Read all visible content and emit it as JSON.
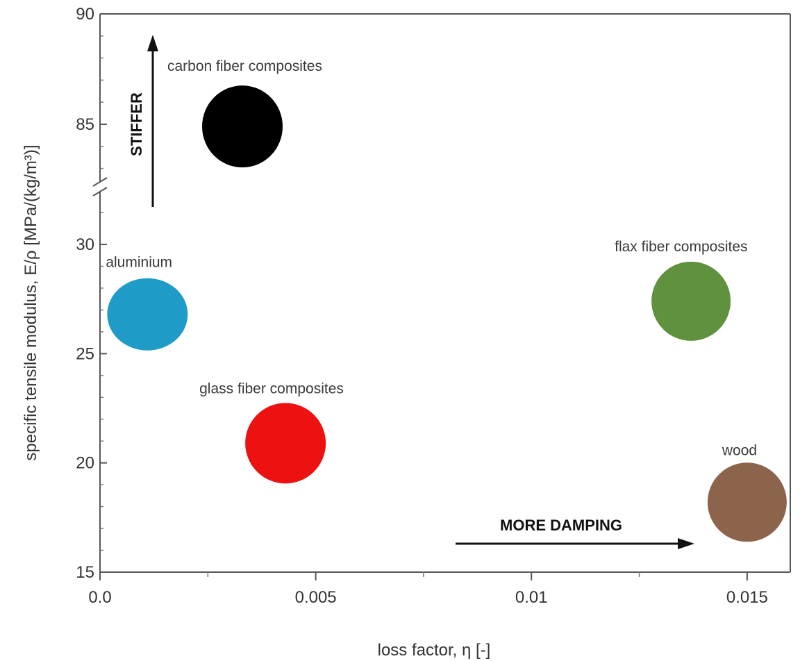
{
  "chart_data": {
    "type": "scatter",
    "xlabel": "loss factor, η [-]",
    "ylabel": "specific tensile modulus, E/ρ [MPa/(kg/m³)]",
    "xlim": [
      0,
      0.016
    ],
    "ylim": [
      15,
      90
    ],
    "y_axis_break": [
      30,
      80
    ],
    "x_ticks": [
      {
        "value": 0,
        "label": "0.0"
      },
      {
        "value": 0.005,
        "label": "0.005"
      },
      {
        "value": 0.01,
        "label": "0.01"
      },
      {
        "value": 0.015,
        "label": "0.015"
      }
    ],
    "y_ticks": [
      {
        "value": 15,
        "label": "15"
      },
      {
        "value": 20,
        "label": "20"
      },
      {
        "value": 25,
        "label": "25"
      },
      {
        "value": 30,
        "label": "30"
      },
      {
        "value": 85,
        "label": "85"
      },
      {
        "value": 90,
        "label": "90"
      }
    ],
    "grid": false,
    "points": [
      {
        "label": "carbon fiber composites",
        "x": 0.0033,
        "y": 84.9,
        "color": "#000000"
      },
      {
        "label": "aluminium",
        "x": 0.0011,
        "y": 26.8,
        "color": "#1f9bc8"
      },
      {
        "label": "glass fiber composites",
        "x": 0.0043,
        "y": 20.9,
        "color": "#ee1111"
      },
      {
        "label": "flax fiber composites",
        "x": 0.0137,
        "y": 27.4,
        "color": "#5f913e"
      },
      {
        "label": "wood",
        "x": 0.015,
        "y": 18.2,
        "color": "#8c634b"
      }
    ],
    "annotations": [
      {
        "text": "STIFFER",
        "direction": "up"
      },
      {
        "text": "MORE DAMPING",
        "direction": "right"
      }
    ]
  }
}
